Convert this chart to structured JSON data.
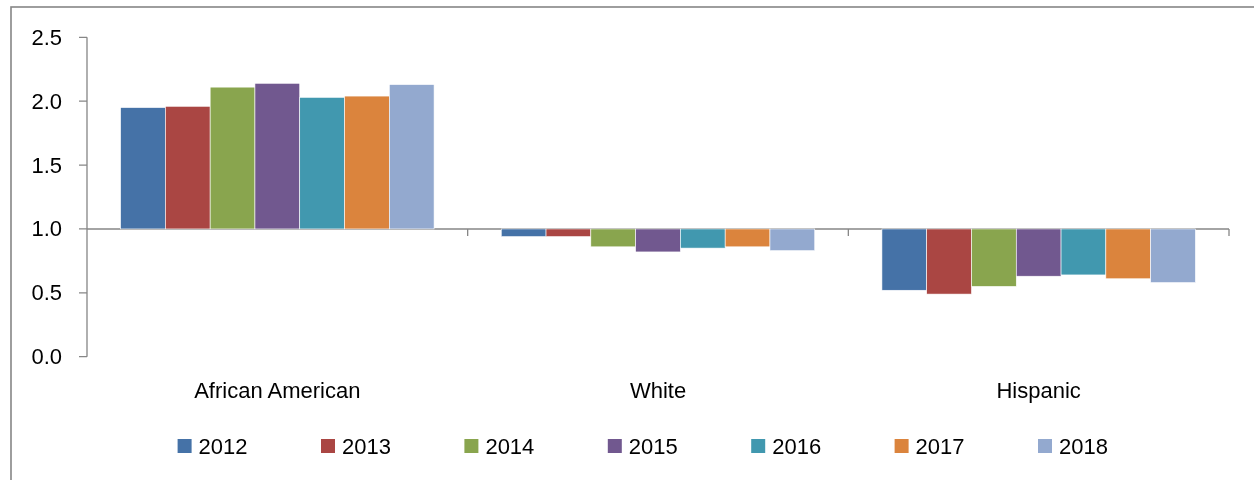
{
  "chart_data": {
    "type": "bar",
    "categories": [
      "African American",
      "White",
      "Hispanic"
    ],
    "ylim": [
      0,
      2.5
    ],
    "yticks": [
      {
        "value": 0,
        "label": "0.0"
      },
      0.5,
      {
        "value": 1,
        "label": "1.0"
      },
      1.5,
      {
        "value": 2,
        "label": "2.0"
      },
      2.5
    ],
    "legend": "bottom",
    "ref_lines": [
      {
        "axis": "y",
        "value": 1,
        "color": "#868686"
      }
    ],
    "series": [
      {
        "name": "2012",
        "color": "#4572a7",
        "base": [
          1,
          1,
          1
        ],
        "values": [
          0.95,
          -0.06,
          -0.48
        ]
      },
      {
        "name": "2013",
        "color": "#aa4643",
        "base": [
          1,
          1,
          1
        ],
        "values": [
          0.96,
          -0.06,
          -0.51
        ]
      },
      {
        "name": "2014",
        "color": "#89a54e",
        "base": [
          1,
          1,
          1
        ],
        "values": [
          1.11,
          -0.14,
          -0.45
        ]
      },
      {
        "name": "2015",
        "color": "#71588f",
        "base": [
          1,
          1,
          1
        ],
        "values": [
          1.14,
          -0.18,
          -0.37
        ]
      },
      {
        "name": "2016",
        "color": "#4198af",
        "base": [
          1,
          1,
          1
        ],
        "values": [
          1.03,
          -0.15,
          -0.36
        ]
      },
      {
        "name": "2017",
        "color": "#db843d",
        "base": [
          1,
          1,
          1
        ],
        "values": [
          1.04,
          -0.14,
          -0.39
        ]
      },
      {
        "name": "2018",
        "color": "#93a9cf",
        "base": [
          1,
          1,
          1
        ],
        "values": [
          1.13,
          -0.17,
          -0.42
        ]
      }
    ]
  }
}
